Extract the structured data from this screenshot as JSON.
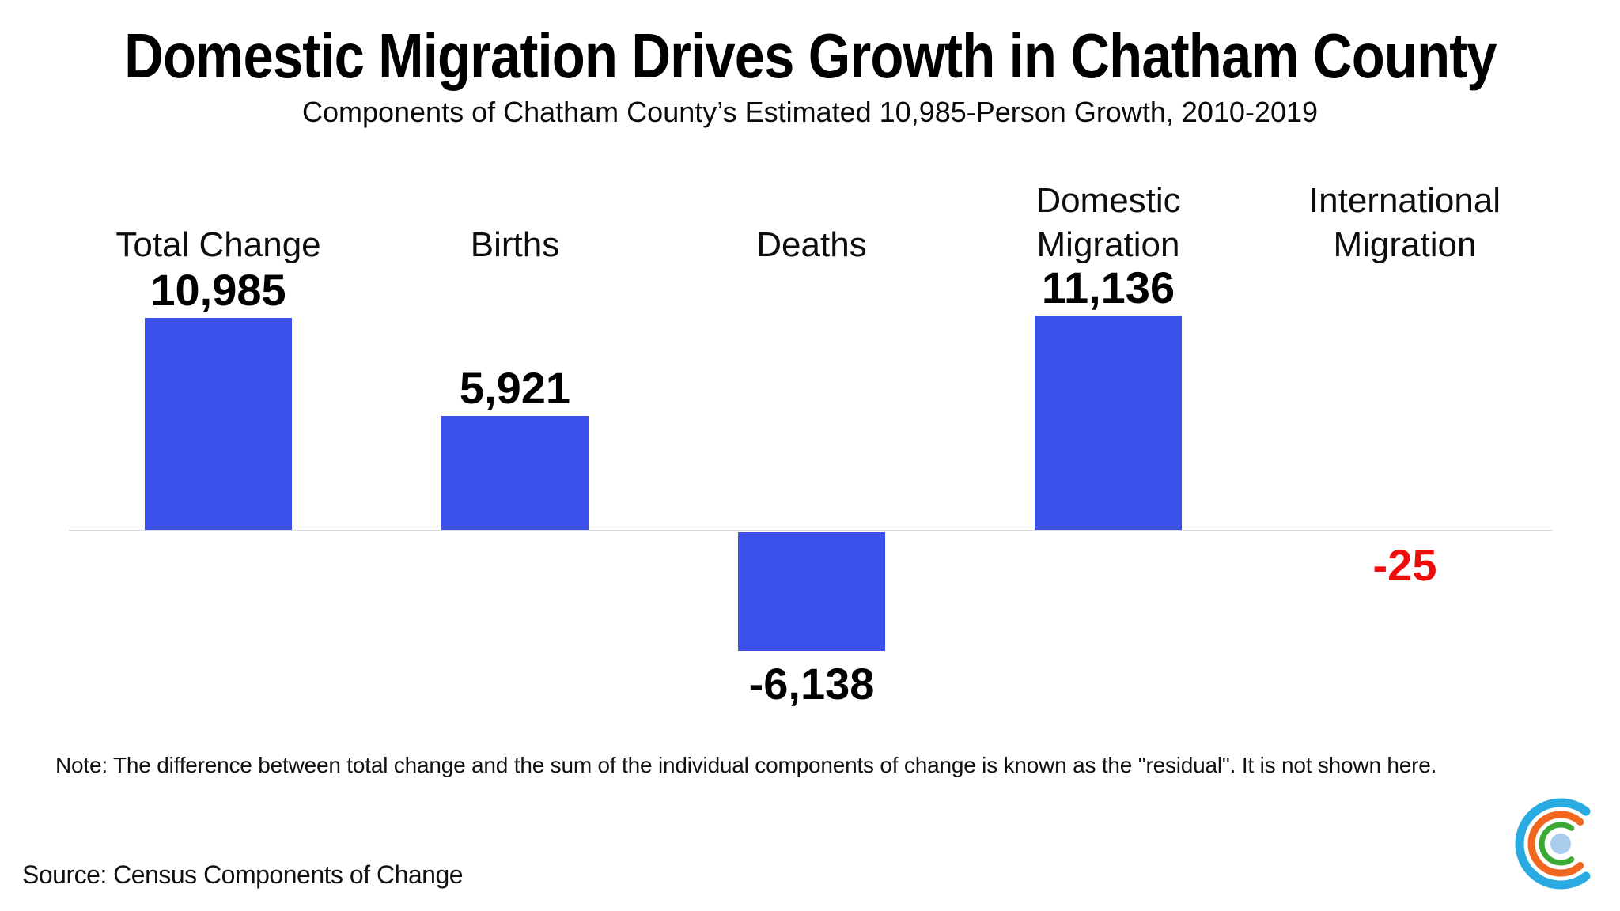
{
  "header": {
    "title": "Domestic Migration Drives Growth in Chatham County",
    "subtitle": "Components of Chatham County’s Estimated 10,985-Person Growth, 2010-2019"
  },
  "chart_data": {
    "type": "bar",
    "title": "Domestic Migration Drives Growth in Chatham County",
    "subtitle": "Components of Chatham County’s Estimated 10,985-Person Growth, 2010-2019",
    "categories": [
      "Total Change",
      "Births",
      "Deaths",
      "Domestic Migration",
      "International Migration"
    ],
    "values": [
      10985,
      5921,
      -6138,
      11136,
      -25
    ],
    "value_labels": [
      "10,985",
      "5,921",
      "-6,138",
      "11,136",
      "-25"
    ],
    "ylim": [
      -6500,
      11500
    ],
    "grid": false,
    "legend": false,
    "bar_color": "#3b50e8",
    "axis_line_color": "#d9d9d9",
    "negative_highlight_color": "#ee0d0d",
    "columns": [
      {
        "category": "Total Change",
        "display_label": "Total Change",
        "value": 10985,
        "value_label": "10,985",
        "value_color": "#000000"
      },
      {
        "category": "Births",
        "display_label": "Births",
        "value": 5921,
        "value_label": "5,921",
        "value_color": "#000000"
      },
      {
        "category": "Deaths",
        "display_label": "Deaths",
        "value": -6138,
        "value_label": "-6,138",
        "value_color": "#000000"
      },
      {
        "category": "Domestic Migration",
        "display_label": "Domestic\nMigration",
        "value": 11136,
        "value_label": "11,136",
        "value_color": "#000000"
      },
      {
        "category": "International Migration",
        "display_label": "International\nMigration",
        "value": -25,
        "value_label": "-25",
        "value_color": "#ee0d0d"
      }
    ]
  },
  "note": "Note: The difference between total change and the sum of the individual components of change is known as the \"residual\". It is not shown here.",
  "source": "Source: Census Components of Change",
  "logo": {
    "name": "concentric-c-logo",
    "colors": {
      "outer_arc": "#29abe2",
      "middle_arc": "#f2671f",
      "inner_arc": "#3aaa35",
      "center_dot": "#a9cdec"
    }
  }
}
